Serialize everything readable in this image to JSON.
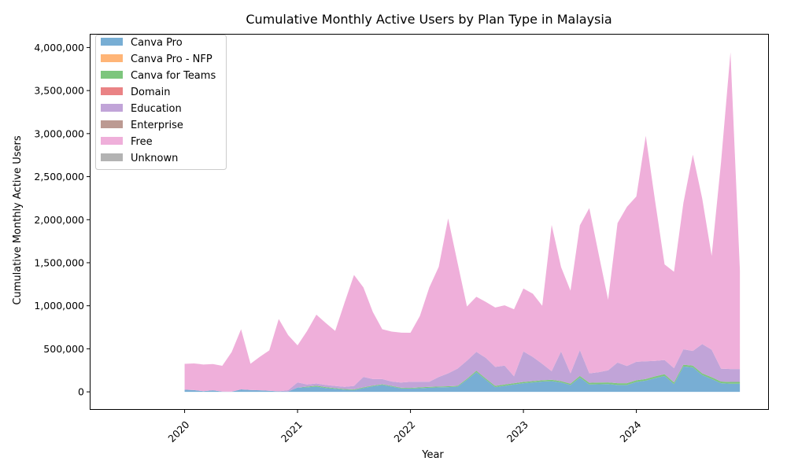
{
  "chart_data": {
    "type": "area",
    "stacked": true,
    "title": "Cumulative Monthly Active Users by Plan Type in Malaysia",
    "xlabel": "Year",
    "ylabel": "Cumulative Monthly Active Users",
    "x_tick_labels": [
      "2020",
      "2021",
      "2022",
      "2023",
      "2024"
    ],
    "x_tick_values": [
      "2020-01",
      "2021-01",
      "2022-01",
      "2023-01",
      "2024-01"
    ],
    "xlim": [
      "2019-03",
      "2025-03"
    ],
    "ylim": [
      -200000,
      4150000
    ],
    "y_ticks": [
      0,
      500000,
      1000000,
      1500000,
      2000000,
      2500000,
      3000000,
      3500000,
      4000000
    ],
    "y_tick_labels": [
      "0",
      "500,000",
      "1,000,000",
      "1,500,000",
      "2,000,000",
      "2,500,000",
      "3,000,000",
      "3,500,000",
      "4,000,000"
    ],
    "grid": false,
    "legend_position": "top-left",
    "x": [
      "2020-01",
      "2020-02",
      "2020-03",
      "2020-04",
      "2020-05",
      "2020-06",
      "2020-07",
      "2020-08",
      "2020-09",
      "2020-10",
      "2020-11",
      "2020-12",
      "2021-01",
      "2021-02",
      "2021-03",
      "2021-04",
      "2021-05",
      "2021-06",
      "2021-07",
      "2021-08",
      "2021-09",
      "2021-10",
      "2021-11",
      "2021-12",
      "2022-01",
      "2022-02",
      "2022-03",
      "2022-04",
      "2022-05",
      "2022-06",
      "2022-07",
      "2022-08",
      "2022-09",
      "2022-10",
      "2022-11",
      "2022-12",
      "2023-01",
      "2023-02",
      "2023-03",
      "2023-04",
      "2023-05",
      "2023-06",
      "2023-07",
      "2023-08",
      "2023-09",
      "2023-10",
      "2023-11",
      "2023-12",
      "2024-01",
      "2024-02",
      "2024-03",
      "2024-04",
      "2024-05",
      "2024-06",
      "2024-07",
      "2024-08",
      "2024-09",
      "2024-10",
      "2024-11",
      "2024-12"
    ],
    "series": [
      {
        "name": "Canva Pro",
        "color": "#78aed4",
        "values": [
          25000,
          20000,
          8000,
          18000,
          3000,
          2000,
          28000,
          22000,
          18000,
          12000,
          6000,
          4000,
          50000,
          52000,
          60000,
          45000,
          35000,
          25000,
          20000,
          45000,
          65000,
          80000,
          62000,
          40000,
          38000,
          42000,
          48000,
          52000,
          55000,
          60000,
          140000,
          230000,
          140000,
          55000,
          70000,
          85000,
          100000,
          110000,
          120000,
          125000,
          110000,
          80000,
          165000,
          85000,
          88000,
          90000,
          80000,
          80000,
          115000,
          130000,
          160000,
          185000,
          90000,
          295000,
          285000,
          195000,
          150000,
          100000,
          95000,
          95000
        ]
      },
      {
        "name": "Canva Pro - NFP",
        "color": "#ffb577",
        "values": [
          0,
          0,
          0,
          0,
          0,
          0,
          0,
          0,
          0,
          0,
          0,
          0,
          0,
          0,
          0,
          0,
          0,
          0,
          0,
          0,
          0,
          0,
          0,
          0,
          0,
          0,
          0,
          0,
          0,
          0,
          0,
          0,
          0,
          0,
          0,
          0,
          0,
          0,
          0,
          0,
          0,
          0,
          0,
          0,
          0,
          0,
          0,
          0,
          0,
          0,
          0,
          0,
          0,
          0,
          0,
          0,
          0,
          0,
          0,
          0
        ]
      },
      {
        "name": "Canva for Teams",
        "color": "#7dc67d",
        "values": [
          0,
          0,
          0,
          0,
          0,
          0,
          0,
          0,
          0,
          0,
          0,
          0,
          0,
          8000,
          12000,
          10000,
          8000,
          8000,
          8000,
          8000,
          8000,
          8000,
          8000,
          8000,
          8000,
          10000,
          10000,
          10000,
          10000,
          10000,
          12000,
          15000,
          15000,
          15000,
          15000,
          15000,
          15000,
          15000,
          15000,
          15000,
          15000,
          15000,
          20000,
          20000,
          20000,
          20000,
          20000,
          20000,
          20000,
          20000,
          20000,
          20000,
          20000,
          20000,
          20000,
          20000,
          20000,
          20000,
          20000,
          20000
        ]
      },
      {
        "name": "Domain",
        "color": "#ea8385",
        "values": [
          0,
          0,
          0,
          0,
          0,
          0,
          0,
          0,
          0,
          0,
          0,
          0,
          0,
          0,
          0,
          0,
          0,
          0,
          0,
          0,
          0,
          0,
          0,
          0,
          0,
          0,
          0,
          0,
          0,
          0,
          0,
          0,
          0,
          0,
          0,
          0,
          0,
          0,
          0,
          0,
          0,
          0,
          0,
          0,
          0,
          0,
          0,
          0,
          0,
          0,
          0,
          0,
          0,
          0,
          0,
          0,
          0,
          0,
          0,
          0
        ]
      },
      {
        "name": "Education",
        "color": "#c1a4d8",
        "values": [
          0,
          0,
          0,
          0,
          0,
          0,
          0,
          0,
          0,
          0,
          0,
          15000,
          60000,
          25000,
          25000,
          25000,
          25000,
          25000,
          40000,
          120000,
          75000,
          60000,
          50000,
          60000,
          70000,
          65000,
          60000,
          110000,
          150000,
          200000,
          210000,
          220000,
          240000,
          220000,
          220000,
          80000,
          355000,
          280000,
          190000,
          100000,
          345000,
          120000,
          300000,
          110000,
          120000,
          140000,
          240000,
          200000,
          215000,
          205000,
          180000,
          165000,
          165000,
          180000,
          170000,
          340000,
          320000,
          150000,
          150000,
          150000
        ]
      },
      {
        "name": "Enterprise",
        "color": "#bc9a92",
        "values": [
          0,
          0,
          0,
          0,
          0,
          0,
          0,
          0,
          0,
          0,
          0,
          0,
          0,
          0,
          0,
          0,
          0,
          0,
          0,
          0,
          0,
          0,
          0,
          0,
          0,
          0,
          0,
          0,
          0,
          0,
          0,
          0,
          0,
          0,
          0,
          0,
          0,
          0,
          0,
          0,
          0,
          0,
          0,
          0,
          0,
          0,
          0,
          0,
          0,
          0,
          0,
          0,
          0,
          0,
          0,
          0,
          0,
          0,
          0,
          0
        ]
      },
      {
        "name": "Free",
        "color": "#efafda",
        "values": [
          300000,
          310000,
          310000,
          305000,
          300000,
          460000,
          700000,
          305000,
          390000,
          470000,
          840000,
          640000,
          430000,
          620000,
          800000,
          720000,
          640000,
          980000,
          1290000,
          1040000,
          780000,
          580000,
          580000,
          580000,
          570000,
          765000,
          1095000,
          1280000,
          1800000,
          1230000,
          630000,
          640000,
          650000,
          690000,
          700000,
          780000,
          730000,
          735000,
          675000,
          1700000,
          980000,
          960000,
          1450000,
          1920000,
          1370000,
          820000,
          1620000,
          1850000,
          1920000,
          2620000,
          1850000,
          1110000,
          1120000,
          1700000,
          2280000,
          1690000,
          1090000,
          2400000,
          3680000,
          1150000
        ]
      },
      {
        "name": "Unknown",
        "color": "#b3b3b3",
        "values": [
          0,
          0,
          0,
          0,
          0,
          0,
          0,
          0,
          0,
          0,
          0,
          0,
          0,
          0,
          0,
          0,
          0,
          0,
          0,
          0,
          0,
          0,
          0,
          0,
          0,
          0,
          0,
          0,
          0,
          0,
          0,
          0,
          0,
          0,
          0,
          0,
          0,
          0,
          0,
          0,
          0,
          0,
          0,
          0,
          0,
          0,
          0,
          0,
          0,
          0,
          0,
          0,
          0,
          0,
          0,
          0,
          0,
          0,
          0,
          0
        ]
      }
    ]
  }
}
